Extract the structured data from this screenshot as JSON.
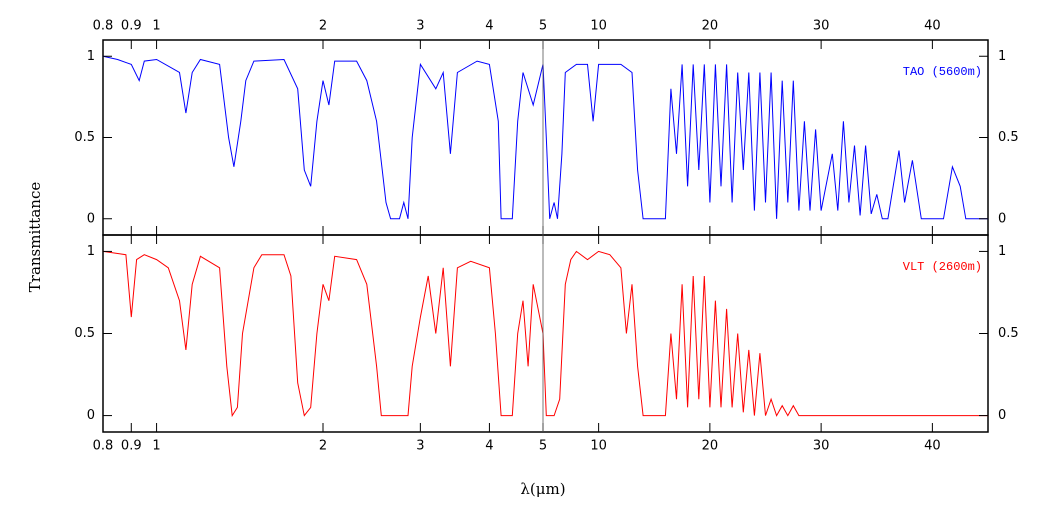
{
  "chart_data": [
    {
      "type": "line",
      "legend": "upper right",
      "xlim": [
        0.8,
        45
      ],
      "xbreak": 5,
      "xscale_below_break": "log",
      "xscale_above_break": "linear",
      "xticks": [
        0.8,
        0.9,
        1,
        2,
        3,
        4,
        5,
        10,
        20,
        30,
        40
      ],
      "ylim": [
        -0.1,
        1.1
      ],
      "yticks": [
        0,
        0.5,
        1
      ],
      "x": [
        0.8,
        0.85,
        0.9,
        0.93,
        0.95,
        1,
        1.1,
        1.13,
        1.16,
        1.2,
        1.3,
        1.35,
        1.38,
        1.42,
        1.45,
        1.5,
        1.7,
        1.8,
        1.85,
        1.9,
        1.95,
        2,
        2.05,
        2.1,
        2.3,
        2.4,
        2.5,
        2.6,
        2.65,
        2.75,
        2.8,
        2.85,
        2.9,
        3,
        3.2,
        3.3,
        3.4,
        3.5,
        3.8,
        4,
        4.15,
        4.2,
        4.4,
        4.5,
        4.6,
        4.8,
        5,
        5.3,
        5.6,
        6,
        6.3,
        6.7,
        7,
        8,
        9,
        9.5,
        10,
        12,
        13,
        13.5,
        14,
        16,
        16.5,
        17,
        17.5,
        18,
        18.5,
        19,
        19.5,
        20,
        20.5,
        21,
        21.5,
        22,
        22.5,
        23,
        23.5,
        24,
        24.5,
        25,
        25.5,
        26,
        26.5,
        27,
        27.5,
        28,
        28.5,
        29,
        29.5,
        30,
        31,
        31.5,
        32,
        32.5,
        33,
        33.5,
        34,
        34.5,
        35,
        35.5,
        36,
        37,
        37.5,
        38.2,
        39,
        41,
        41.8,
        42.5,
        43,
        45
      ],
      "series": [
        {
          "name": "TAO (5600m)",
          "color": "#0000ff",
          "values": [
            1,
            0.98,
            0.95,
            0.85,
            0.97,
            0.98,
            0.9,
            0.65,
            0.9,
            0.98,
            0.95,
            0.5,
            0.32,
            0.6,
            0.85,
            0.97,
            0.98,
            0.8,
            0.3,
            0.2,
            0.6,
            0.85,
            0.7,
            0.97,
            0.97,
            0.85,
            0.6,
            0.1,
            0,
            0,
            0.1,
            0,
            0.5,
            0.95,
            0.8,
            0.9,
            0.4,
            0.9,
            0.97,
            0.95,
            0.6,
            0,
            0,
            0.6,
            0.9,
            0.7,
            0.95,
            0.5,
            0,
            0.1,
            0,
            0.4,
            0.9,
            0.95,
            0.95,
            0.6,
            0.95,
            0.95,
            0.9,
            0.3,
            0,
            0,
            0.8,
            0.4,
            0.95,
            0.2,
            0.95,
            0.3,
            0.95,
            0.1,
            0.95,
            0.2,
            0.95,
            0.1,
            0.9,
            0.3,
            0.9,
            0.05,
            0.9,
            0.1,
            0.9,
            0,
            0.85,
            0.1,
            0.85,
            0.05,
            0.6,
            0.05,
            0.55,
            0.05,
            0.4,
            0.05,
            0.6,
            0.1,
            0.45,
            0.02,
            0.45,
            0.03,
            0.15,
            0,
            0,
            0.42,
            0.1,
            0.36,
            0,
            0,
            0.32,
            0.2,
            0,
            0
          ]
        }
      ]
    },
    {
      "type": "line",
      "legend": "upper right",
      "xlim": [
        0.8,
        45
      ],
      "xbreak": 5,
      "xscale_below_break": "log",
      "xscale_above_break": "linear",
      "xticks": [
        0.8,
        0.9,
        1,
        2,
        3,
        4,
        5,
        10,
        20,
        30,
        40
      ],
      "ylim": [
        -0.1,
        1.1
      ],
      "yticks": [
        0,
        0.5,
        1
      ],
      "x": [
        0.8,
        0.88,
        0.9,
        0.92,
        0.95,
        1,
        1.05,
        1.1,
        1.13,
        1.16,
        1.2,
        1.3,
        1.34,
        1.37,
        1.4,
        1.43,
        1.5,
        1.55,
        1.7,
        1.75,
        1.8,
        1.85,
        1.9,
        1.95,
        2,
        2.05,
        2.1,
        2.3,
        2.4,
        2.5,
        2.55,
        2.85,
        2.9,
        3,
        3.1,
        3.2,
        3.3,
        3.4,
        3.5,
        3.7,
        4,
        4.1,
        4.2,
        4.4,
        4.5,
        4.6,
        4.7,
        4.8,
        5,
        5.3,
        6,
        6.5,
        7,
        7.5,
        8,
        9,
        10,
        11,
        12,
        12.5,
        13,
        13.5,
        14,
        16,
        16.5,
        17,
        17.5,
        18,
        18.5,
        19,
        19.5,
        20,
        20.5,
        21,
        21.5,
        22,
        22.5,
        23,
        23.5,
        24,
        24.5,
        25,
        25.5,
        26,
        26.5,
        27,
        27.5,
        28,
        45
      ],
      "series": [
        {
          "name": "VLT (2600m)",
          "color": "#ff0000",
          "values": [
            1,
            0.98,
            0.6,
            0.95,
            0.98,
            0.95,
            0.9,
            0.7,
            0.4,
            0.8,
            0.97,
            0.9,
            0.3,
            0,
            0.05,
            0.5,
            0.9,
            0.98,
            0.98,
            0.85,
            0.2,
            0,
            0.05,
            0.5,
            0.8,
            0.7,
            0.97,
            0.95,
            0.8,
            0.3,
            0,
            0,
            0.3,
            0.6,
            0.85,
            0.5,
            0.9,
            0.3,
            0.9,
            0.94,
            0.9,
            0.5,
            0,
            0,
            0.5,
            0.7,
            0.3,
            0.8,
            0.5,
            0,
            0,
            0.1,
            0.8,
            0.95,
            1,
            0.95,
            1,
            0.98,
            0.9,
            0.5,
            0.8,
            0.3,
            0,
            0,
            0.5,
            0.1,
            0.8,
            0.05,
            0.85,
            0.1,
            0.85,
            0.05,
            0.7,
            0.05,
            0.65,
            0.05,
            0.5,
            0.02,
            0.4,
            0,
            0.38,
            0,
            0.1,
            0,
            0.06,
            0,
            0.06,
            0,
            0
          ]
        }
      ]
    }
  ],
  "xlabel": "λ(μm)",
  "ylabel": "Transmittance"
}
